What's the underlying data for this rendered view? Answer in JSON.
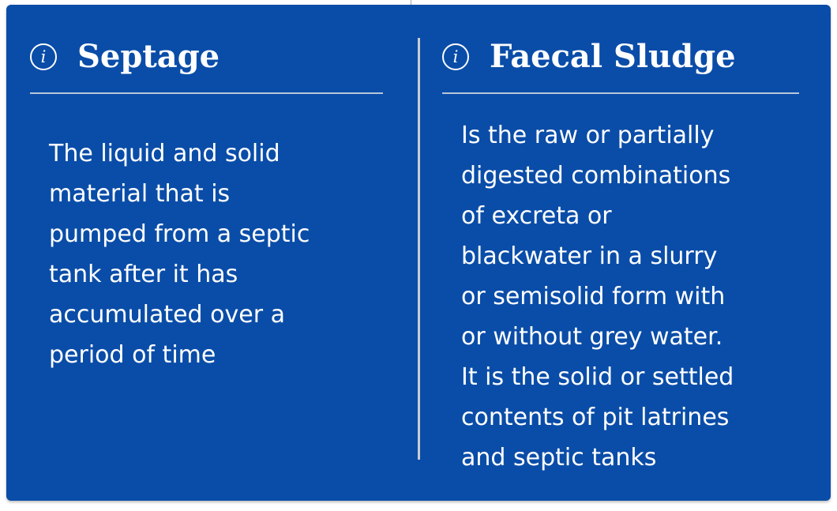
{
  "cards": [
    {
      "title": "Septage",
      "icon": "info-icon",
      "lines": [
        "The liquid and solid",
        "material that is",
        "pumped from a septic",
        "tank after it has",
        "accumulated over a",
        "period of time"
      ]
    },
    {
      "title": "Faecal Sludge",
      "icon": "info-icon",
      "lines": [
        "Is the raw or partially",
        "digested combinations",
        "of excreta or",
        "blackwater in a slurry",
        "or semisolid form with",
        "or without grey water.",
        "It is the solid or settled",
        "contents of pit latrines",
        "and septic tanks"
      ]
    }
  ],
  "colors": {
    "background": "#0a4da8",
    "text": "#ffffff",
    "divider": "#c9cdd4"
  },
  "icon_glyph": "i"
}
